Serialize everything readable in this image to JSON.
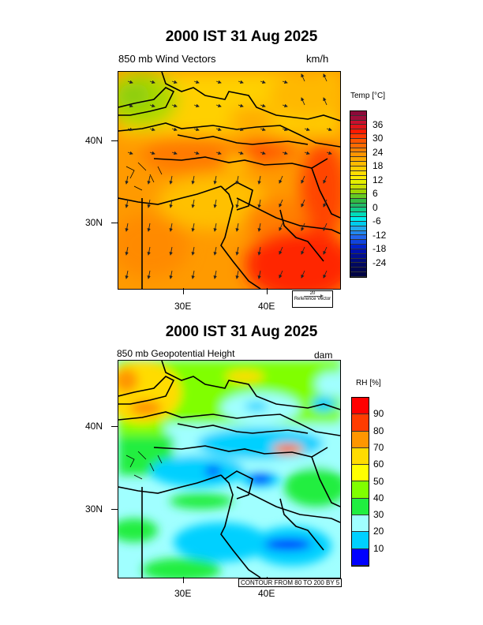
{
  "panels": [
    {
      "title": "2000 IST 31 Aug 2025",
      "left_label": "850 mb Wind Vectors",
      "right_label": "km/h",
      "lat_ticks": [
        "40N",
        "30N"
      ],
      "lon_ticks": [
        "30E",
        "40E"
      ],
      "colorbar": {
        "title": "Temp [°C]",
        "labels": [
          "36",
          "30",
          "24",
          "18",
          "12",
          "6",
          "0",
          "-6",
          "-12",
          "-18",
          "-24"
        ],
        "colors": [
          "#8b0a3a",
          "#a00d3a",
          "#c8102e",
          "#e0141a",
          "#ff1a00",
          "#ff3800",
          "#ff5500",
          "#ff6a00",
          "#ff8000",
          "#ff9500",
          "#ffaa00",
          "#ffbb00",
          "#ffcc00",
          "#ffdd00",
          "#ffee00",
          "#e5ee00",
          "#c8e000",
          "#9fd400",
          "#66cc22",
          "#33bb44",
          "#22bb66",
          "#11cc88",
          "#00ddbb",
          "#00eeee",
          "#00ccee",
          "#22aaee",
          "#2288ee",
          "#2266ee",
          "#1144dd",
          "#0022cc",
          "#0011aa",
          "#000e90",
          "#000a78",
          "#000860",
          "#000650",
          "#000445"
        ]
      },
      "reference_vector": {
        "value": "20",
        "label": "Reference Vector"
      }
    },
    {
      "title": "2000 IST 31 Aug 2025",
      "left_label": "850 mb Geopotential Height",
      "right_label": "dam",
      "lat_ticks": [
        "40N",
        "30N"
      ],
      "lon_ticks": [
        "30E",
        "40E"
      ],
      "colorbar": {
        "title": "RH [%]",
        "labels": [
          "90",
          "80",
          "70",
          "60",
          "50",
          "40",
          "30",
          "20",
          "10"
        ],
        "colors": [
          "#ff0000",
          "#ff3c00",
          "#ff9600",
          "#ffdc00",
          "#ffff00",
          "#80ff00",
          "#20ee40",
          "#a0ffff",
          "#00d0ff",
          "#0000ff"
        ]
      },
      "contour_info": "CONTOUR FROM 80 TO 200 BY 5"
    }
  ]
}
